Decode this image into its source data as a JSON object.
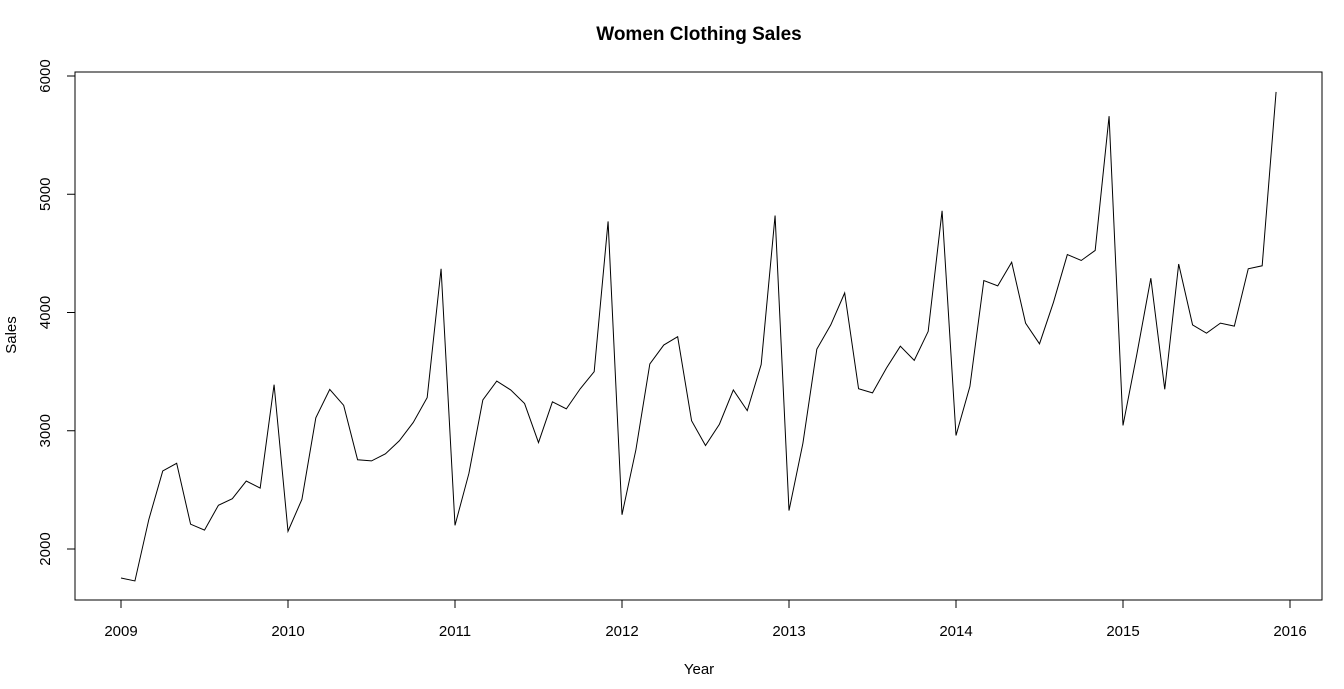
{
  "chart_data": {
    "type": "line",
    "title": "Women Clothing Sales",
    "xlabel": "Year",
    "ylabel": "Sales",
    "xlim": [
      2009,
      2016
    ],
    "ylim": [
      1600,
      6000
    ],
    "x_ticks": [
      2009,
      2010,
      2011,
      2012,
      2013,
      2014,
      2015,
      2016
    ],
    "y_ticks": [
      2000,
      3000,
      4000,
      5000,
      6000
    ],
    "grid": false,
    "line_color": "#000000",
    "series": [
      {
        "start": 2009,
        "frequency": 12,
        "values": [
          1755,
          1730,
          2250,
          2660,
          2725,
          2210,
          2160,
          2370,
          2425,
          2575,
          2515,
          3390,
          2150,
          2420,
          3110,
          3350,
          3215,
          2755,
          2745,
          2805,
          2915,
          3070,
          3280,
          4370,
          2200,
          2640,
          3260,
          3420,
          3345,
          3230,
          2900,
          3245,
          3185,
          3355,
          3500,
          4770,
          2290,
          2840,
          3565,
          3725,
          3795,
          3085,
          2875,
          3055,
          3345,
          3170,
          3560,
          4820,
          2325,
          2895,
          3690,
          3895,
          4165,
          3355,
          3320,
          3530,
          3715,
          3595,
          3840,
          4860,
          2960,
          3375,
          4270,
          4225,
          4425,
          3910,
          3735,
          4085,
          4490,
          4440,
          4525,
          5660,
          3045,
          3650,
          4290,
          3350,
          4410,
          3895,
          3825,
          3910,
          3885,
          4370,
          4395,
          5865
        ]
      }
    ]
  }
}
